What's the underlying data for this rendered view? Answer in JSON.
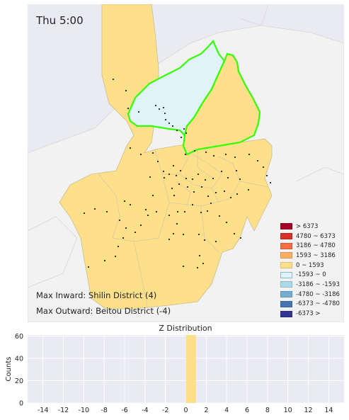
{
  "map": {
    "time_label": "Thu 5:00",
    "max_inward": "Max Inward: Shilin District (4)",
    "max_outward": "Max Outward: Beitou District (-4)",
    "colors": {
      "highlight_border": "#33ff00",
      "region_fill": "#fee08b",
      "negative_fill": "#e0f3f8",
      "station_dot": "#222222"
    },
    "legend": [
      {
        "label": "> 6373",
        "color": "#a50026"
      },
      {
        "label": "4780 ~ 6373",
        "color": "#d73027"
      },
      {
        "label": "3186 ~ 4780",
        "color": "#f46d43"
      },
      {
        "label": "1593 ~ 3186",
        "color": "#fdae61"
      },
      {
        "label": "0 ~ 1593",
        "color": "#fee08b"
      },
      {
        "label": "-1593 ~ 0",
        "color": "#e0f3f8"
      },
      {
        "label": "-3186 ~ -1593",
        "color": "#abd9e9"
      },
      {
        "label": "-4780 ~ -3186",
        "color": "#74add1"
      },
      {
        "label": "-6373 ~ -4780",
        "color": "#4575b4"
      },
      {
        "label": "-6373 >",
        "color": "#313695"
      }
    ]
  },
  "chart_data": {
    "type": "bar",
    "title": "Z Distribution",
    "xlabel": "",
    "ylabel": "Counts",
    "xlim": [
      -15.5,
      15.5
    ],
    "ylim": [
      0,
      61
    ],
    "xticks": [
      -14,
      -12,
      -10,
      -8,
      -6,
      -4,
      -2,
      0,
      2,
      4,
      6,
      8,
      10,
      12,
      14
    ],
    "yticks": [
      0,
      20,
      40,
      60
    ],
    "bins": [
      {
        "x0": 0,
        "x1": 1,
        "count": 61
      }
    ],
    "bar_color": "#fee08b",
    "grid": true
  }
}
